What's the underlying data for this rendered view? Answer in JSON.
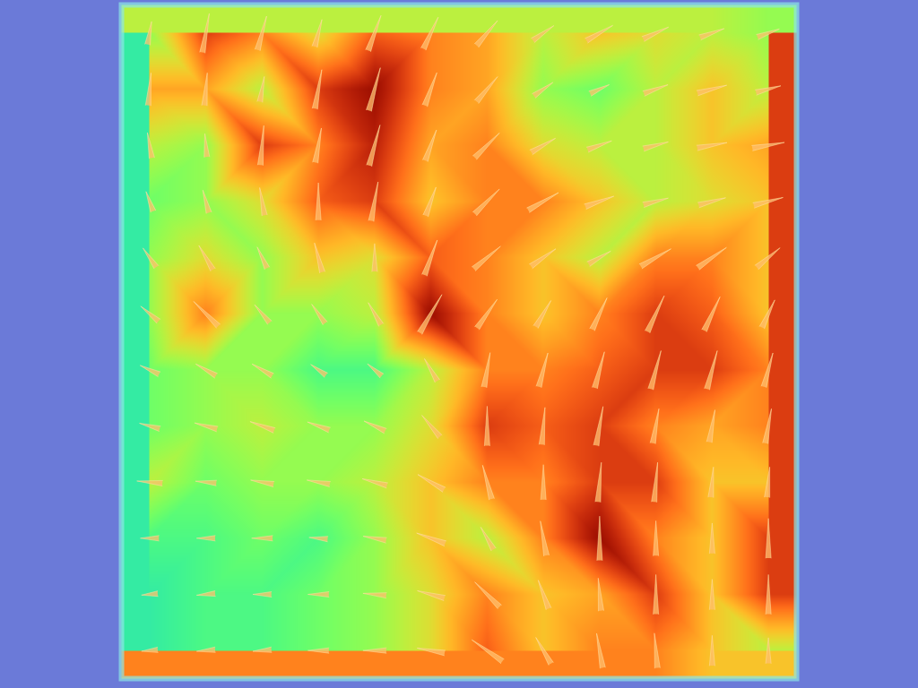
{
  "chart_data": {
    "type": "vector_field",
    "tick_labels": false,
    "grid": false,
    "xlim": [
      0,
      12
    ],
    "ylim": [
      0,
      12
    ],
    "zlim": [
      0,
      10
    ],
    "color": "turbo",
    "x": [
      0.5,
      1.5,
      2.5,
      3.5,
      4.5,
      5.5,
      6.5,
      7.5,
      8.5,
      9.5,
      10.5,
      11.5
    ],
    "y": [
      11.5,
      10.5,
      9.5,
      8.5,
      7.5,
      6.5,
      5.5,
      4.5,
      3.5,
      2.5,
      1.5,
      0.5
    ],
    "values": [
      [
        5.0,
        8.5,
        7.5,
        6.0,
        8.0,
        7.5,
        7.0,
        5.5,
        6.5,
        6.0,
        5.5,
        5.0
      ],
      [
        7.0,
        7.0,
        5.5,
        8.5,
        9.5,
        7.5,
        7.0,
        5.0,
        4.5,
        5.5,
        6.5,
        5.5
      ],
      [
        5.5,
        5.0,
        8.5,
        7.5,
        9.0,
        7.0,
        7.5,
        6.0,
        5.5,
        5.5,
        6.5,
        7.0
      ],
      [
        4.5,
        5.0,
        6.0,
        8.0,
        8.5,
        6.5,
        7.5,
        7.5,
        6.5,
        5.5,
        6.0,
        6.5
      ],
      [
        5.0,
        6.0,
        5.0,
        6.5,
        6.0,
        8.0,
        7.5,
        6.5,
        5.5,
        7.5,
        7.5,
        6.5
      ],
      [
        5.0,
        7.5,
        5.0,
        5.0,
        5.5,
        9.5,
        7.5,
        6.5,
        7.5,
        8.5,
        8.0,
        6.5
      ],
      [
        4.5,
        5.0,
        5.0,
        4.0,
        4.0,
        5.5,
        7.5,
        7.5,
        8.0,
        8.5,
        8.5,
        7.5
      ],
      [
        4.5,
        5.0,
        5.5,
        5.0,
        5.0,
        6.0,
        8.5,
        8.0,
        8.5,
        7.5,
        7.0,
        7.5
      ],
      [
        5.5,
        4.5,
        5.0,
        5.0,
        5.5,
        6.5,
        7.5,
        7.5,
        8.5,
        8.5,
        6.5,
        6.5
      ],
      [
        4.0,
        4.0,
        4.5,
        4.0,
        5.0,
        6.5,
        5.5,
        7.5,
        9.5,
        7.5,
        6.5,
        8.5
      ],
      [
        3.5,
        4.0,
        4.0,
        4.5,
        5.0,
        6.0,
        7.5,
        6.5,
        7.0,
        8.5,
        6.5,
        8.5
      ],
      [
        3.5,
        4.0,
        4.0,
        4.5,
        5.0,
        6.0,
        8.0,
        6.5,
        7.5,
        7.5,
        6.5,
        5.5
      ]
    ],
    "directions": [
      [
        10,
        10,
        15,
        15,
        20,
        25,
        40,
        55,
        60,
        65,
        70,
        70
      ],
      [
        5,
        5,
        10,
        10,
        15,
        20,
        40,
        55,
        65,
        70,
        75,
        75
      ],
      [
        350,
        355,
        5,
        10,
        15,
        20,
        45,
        60,
        70,
        75,
        80,
        80
      ],
      [
        340,
        345,
        350,
        0,
        10,
        20,
        45,
        60,
        70,
        75,
        75,
        75
      ],
      [
        325,
        330,
        335,
        345,
        0,
        20,
        50,
        55,
        60,
        60,
        55,
        50
      ],
      [
        310,
        315,
        320,
        325,
        330,
        30,
        35,
        30,
        25,
        25,
        25,
        25
      ],
      [
        295,
        300,
        300,
        305,
        310,
        330,
        10,
        15,
        15,
        15,
        15,
        15
      ],
      [
        285,
        285,
        290,
        290,
        295,
        320,
        0,
        5,
        10,
        10,
        10,
        10
      ],
      [
        275,
        275,
        280,
        280,
        285,
        300,
        345,
        0,
        5,
        5,
        5,
        5
      ],
      [
        270,
        270,
        270,
        275,
        280,
        290,
        330,
        350,
        0,
        0,
        0,
        0
      ],
      [
        265,
        265,
        270,
        270,
        275,
        285,
        315,
        340,
        355,
        0,
        0,
        0
      ],
      [
        265,
        265,
        265,
        270,
        270,
        280,
        305,
        330,
        350,
        355,
        0,
        0
      ]
    ]
  }
}
